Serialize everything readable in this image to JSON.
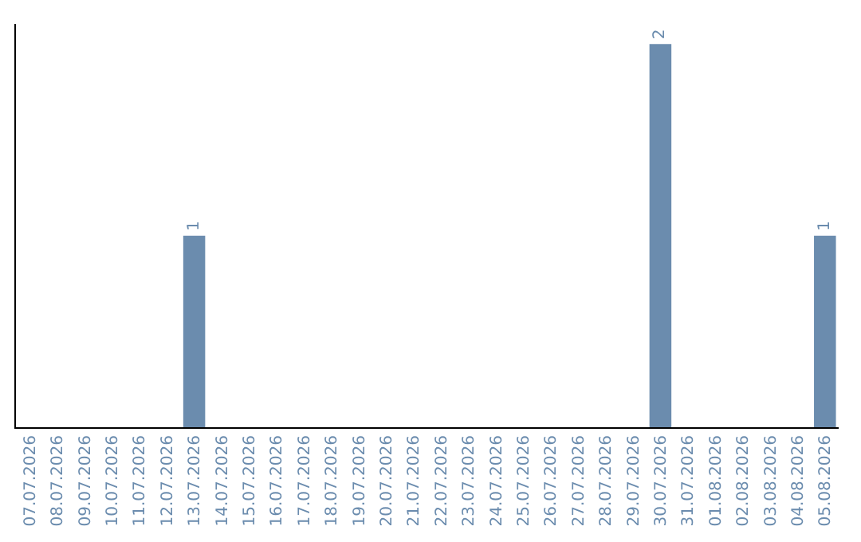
{
  "chart_data": {
    "type": "bar",
    "categories": [
      "07.07.2026",
      "08.07.2026",
      "09.07.2026",
      "10.07.2026",
      "11.07.2026",
      "12.07.2026",
      "13.07.2026",
      "14.07.2026",
      "15.07.2026",
      "16.07.2026",
      "17.07.2026",
      "18.07.2026",
      "19.07.2026",
      "20.07.2026",
      "21.07.2026",
      "22.07.2026",
      "23.07.2026",
      "24.07.2026",
      "25.07.2026",
      "26.07.2026",
      "27.07.2026",
      "28.07.2026",
      "29.07.2026",
      "30.07.2026",
      "31.07.2026",
      "01.08.2026",
      "02.08.2026",
      "03.08.2026",
      "04.08.2026",
      "05.08.2026"
    ],
    "values": [
      0,
      0,
      0,
      0,
      0,
      0,
      1,
      0,
      0,
      0,
      0,
      0,
      0,
      0,
      0,
      0,
      0,
      0,
      0,
      0,
      0,
      0,
      0,
      2,
      0,
      0,
      0,
      0,
      0,
      1
    ],
    "value_labels": [
      null,
      null,
      null,
      null,
      null,
      null,
      "1",
      null,
      null,
      null,
      null,
      null,
      null,
      null,
      null,
      null,
      null,
      null,
      null,
      null,
      null,
      null,
      null,
      "2",
      null,
      null,
      null,
      null,
      null,
      "1"
    ],
    "color": "#6b8cae",
    "tick_labels": "x"
  }
}
